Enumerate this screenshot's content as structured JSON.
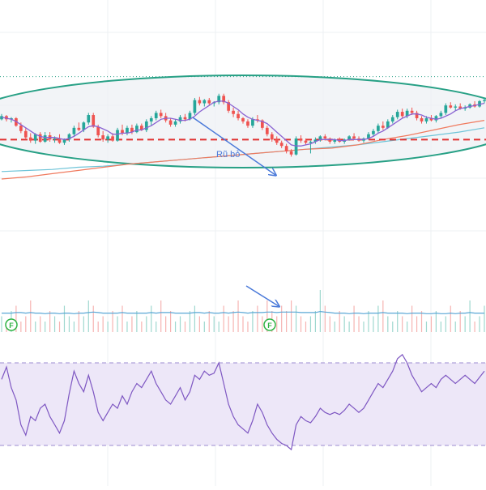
{
  "chart_data": {
    "type": "candlestick",
    "price_panel": {
      "candles": [
        [
          12.8,
          13.3,
          12.7,
          13.1
        ],
        [
          13.1,
          13.2,
          12.6,
          12.8
        ],
        [
          12.8,
          13.0,
          12.5,
          12.9
        ],
        [
          12.9,
          13.0,
          12.1,
          12.2
        ],
        [
          12.2,
          12.5,
          11.5,
          11.7
        ],
        [
          11.7,
          12.0,
          10.9,
          11.1
        ],
        [
          11.1,
          11.5,
          10.6,
          10.8
        ],
        [
          10.8,
          11.5,
          10.5,
          11.4
        ],
        [
          11.4,
          11.6,
          10.6,
          10.7
        ],
        [
          10.7,
          11.6,
          10.6,
          11.3
        ],
        [
          11.3,
          11.6,
          10.7,
          10.9
        ],
        [
          10.9,
          11.2,
          10.6,
          11.0
        ],
        [
          11.0,
          11.4,
          10.5,
          10.6
        ],
        [
          10.6,
          11.0,
          10.4,
          10.9
        ],
        [
          10.9,
          11.5,
          10.7,
          11.4
        ],
        [
          11.4,
          12.2,
          11.2,
          12.0
        ],
        [
          12.0,
          12.5,
          11.7,
          11.8
        ],
        [
          11.8,
          12.6,
          11.6,
          12.5
        ],
        [
          12.5,
          13.4,
          12.3,
          13.2
        ],
        [
          13.2,
          13.4,
          12.0,
          12.1
        ],
        [
          12.1,
          12.3,
          11.1,
          11.3
        ],
        [
          11.3,
          11.7,
          10.7,
          10.9
        ],
        [
          10.9,
          11.4,
          10.6,
          11.2
        ],
        [
          11.2,
          11.5,
          10.7,
          10.8
        ],
        [
          10.8,
          12.0,
          10.7,
          11.8
        ],
        [
          11.8,
          12.3,
          11.3,
          11.5
        ],
        [
          11.5,
          12.2,
          11.3,
          12.0
        ],
        [
          12.0,
          12.3,
          11.4,
          11.6
        ],
        [
          11.6,
          12.4,
          11.5,
          12.2
        ],
        [
          12.2,
          12.4,
          11.7,
          11.8
        ],
        [
          11.8,
          12.8,
          11.6,
          12.6
        ],
        [
          12.6,
          13.1,
          12.2,
          12.9
        ],
        [
          12.9,
          13.6,
          12.7,
          13.4
        ],
        [
          13.4,
          13.7,
          12.9,
          13.1
        ],
        [
          13.1,
          13.4,
          12.5,
          12.7
        ],
        [
          12.7,
          12.9,
          12.1,
          12.3
        ],
        [
          12.3,
          12.8,
          12.1,
          12.6
        ],
        [
          12.6,
          13.2,
          12.4,
          13.0
        ],
        [
          13.0,
          13.3,
          12.6,
          12.8
        ],
        [
          12.8,
          13.6,
          12.7,
          13.4
        ],
        [
          13.4,
          14.8,
          13.2,
          14.6
        ],
        [
          14.6,
          14.9,
          14.1,
          14.3
        ],
        [
          14.3,
          14.7,
          14.0,
          14.6
        ],
        [
          14.6,
          14.8,
          14.1,
          14.3
        ],
        [
          14.3,
          14.5,
          14.0,
          14.4
        ],
        [
          14.4,
          15.2,
          14.2,
          15.0
        ],
        [
          15.0,
          15.2,
          14.2,
          14.4
        ],
        [
          14.4,
          14.6,
          13.4,
          13.6
        ],
        [
          13.6,
          13.9,
          13.0,
          13.3
        ],
        [
          13.3,
          13.6,
          12.7,
          12.9
        ],
        [
          12.9,
          13.0,
          12.4,
          12.6
        ],
        [
          12.6,
          12.8,
          12.0,
          12.2
        ],
        [
          12.2,
          13.0,
          12.0,
          12.8
        ],
        [
          12.8,
          13.2,
          12.5,
          12.7
        ],
        [
          12.7,
          12.8,
          11.8,
          12.0
        ],
        [
          12.0,
          12.2,
          11.2,
          11.4
        ],
        [
          11.4,
          11.6,
          10.7,
          10.9
        ],
        [
          10.9,
          11.2,
          10.4,
          10.6
        ],
        [
          10.6,
          10.8,
          10.1,
          10.3
        ],
        [
          10.3,
          10.5,
          9.6,
          9.8
        ],
        [
          9.8,
          10.0,
          9.3,
          9.5
        ],
        [
          9.5,
          11.2,
          9.4,
          11.0
        ],
        [
          11.0,
          11.3,
          10.6,
          10.8
        ],
        [
          10.8,
          11.0,
          10.4,
          10.6
        ],
        [
          10.6,
          10.8,
          9.6,
          10.7
        ],
        [
          10.7,
          11.1,
          10.5,
          10.9
        ],
        [
          10.9,
          11.3,
          10.7,
          11.2
        ],
        [
          11.2,
          11.4,
          10.8,
          11.0
        ],
        [
          11.0,
          11.1,
          10.5,
          10.7
        ],
        [
          10.7,
          11.0,
          10.5,
          10.9
        ],
        [
          10.9,
          11.1,
          10.6,
          10.7
        ],
        [
          10.7,
          11.0,
          10.5,
          10.9
        ],
        [
          10.9,
          11.3,
          10.8,
          11.2
        ],
        [
          11.2,
          11.5,
          10.9,
          11.0
        ],
        [
          11.0,
          11.2,
          10.7,
          10.8
        ],
        [
          10.8,
          11.1,
          10.6,
          11.0
        ],
        [
          11.0,
          11.6,
          10.9,
          11.4
        ],
        [
          11.4,
          11.9,
          11.2,
          11.7
        ],
        [
          11.7,
          12.4,
          11.5,
          12.2
        ],
        [
          12.2,
          12.6,
          11.8,
          12.0
        ],
        [
          12.0,
          12.8,
          11.9,
          12.6
        ],
        [
          12.6,
          13.2,
          12.4,
          13.0
        ],
        [
          13.0,
          13.7,
          12.8,
          13.5
        ],
        [
          13.5,
          13.8,
          12.9,
          13.1
        ],
        [
          13.1,
          13.8,
          12.9,
          13.6
        ],
        [
          13.6,
          13.9,
          13.2,
          13.4
        ],
        [
          13.4,
          13.6,
          12.7,
          12.9
        ],
        [
          12.9,
          13.1,
          12.4,
          12.6
        ],
        [
          12.6,
          13.1,
          12.4,
          12.9
        ],
        [
          12.9,
          13.2,
          12.6,
          12.7
        ],
        [
          12.7,
          13.2,
          12.5,
          13.1
        ],
        [
          13.1,
          13.6,
          12.9,
          13.4
        ],
        [
          13.4,
          14.3,
          13.2,
          14.1
        ],
        [
          14.1,
          14.4,
          13.8,
          13.9
        ],
        [
          13.9,
          14.2,
          13.6,
          14.0
        ],
        [
          14.0,
          14.3,
          13.7,
          13.8
        ],
        [
          13.8,
          14.1,
          13.6,
          13.9
        ],
        [
          13.9,
          14.3,
          13.8,
          14.2
        ],
        [
          14.2,
          14.5,
          13.9,
          14.0
        ],
        [
          14.0,
          14.6,
          13.9,
          14.5
        ],
        [
          14.5,
          14.8,
          14.3,
          14.6
        ]
      ],
      "support_level": 10.9,
      "top_reference_level": 16.8,
      "ma_short": [
        13.0,
        12.9,
        12.8,
        12.6,
        12.3,
        12.0,
        11.7,
        11.4,
        11.2,
        11.1,
        11.1,
        11.1,
        11.0,
        10.9,
        11.0,
        11.2,
        11.5,
        11.8,
        12.1,
        12.2,
        12.1,
        11.9,
        11.7,
        11.4,
        11.4,
        11.5,
        11.5,
        11.6,
        11.8,
        11.8,
        12.0,
        12.2,
        12.5,
        12.8,
        12.9,
        12.9,
        12.8,
        12.7,
        12.7,
        12.8,
        13.1,
        13.5,
        13.8,
        14.1,
        14.4,
        14.5,
        14.5,
        14.3,
        14.0,
        13.7,
        13.3,
        13.0,
        12.8,
        12.7,
        12.6,
        12.4,
        12.0,
        11.6,
        11.2,
        10.8,
        10.4,
        10.3,
        10.3,
        10.4,
        10.5,
        10.7,
        10.9,
        10.9,
        10.9,
        10.9,
        10.8,
        10.8,
        10.9,
        10.9,
        10.9,
        10.9,
        11.0,
        11.2,
        11.5,
        11.7,
        12.0,
        12.3,
        12.6,
        12.9,
        13.1,
        13.3,
        13.3,
        13.2,
        13.0,
        12.9,
        12.8,
        12.9,
        13.1,
        13.3,
        13.6,
        13.8,
        13.9,
        14.0,
        14.1,
        14.2,
        14.3
      ],
      "ma_long_200": [
        7.2,
        7.4,
        7.7,
        8.0,
        8.3,
        8.6,
        8.8,
        9.0,
        9.2,
        9.4,
        9.6,
        9.8,
        10.0,
        10.1,
        10.4,
        10.9,
        11.3,
        11.8,
        12.3,
        12.7
      ],
      "ma_long_50": [
        7.9,
        8.0,
        8.1,
        8.3,
        8.4,
        8.6,
        8.8,
        9.0,
        9.2,
        9.4,
        9.6,
        9.8,
        10.0,
        10.2,
        10.4,
        10.7,
        11.0,
        11.3,
        11.6,
        12.0
      ],
      "annotation": "Rũ bỏ"
    },
    "volume_panel": {
      "values": [
        3,
        2,
        4,
        5,
        2,
        3,
        6,
        2,
        3,
        2,
        4,
        3,
        2,
        5,
        3,
        2,
        4,
        3,
        6,
        5,
        2,
        3,
        2,
        4,
        3,
        5,
        2,
        3,
        4,
        2,
        3,
        5,
        2,
        6,
        3,
        4,
        2,
        3,
        2,
        4,
        5,
        3,
        2,
        4,
        3,
        2,
        5,
        3,
        4,
        6,
        3,
        2,
        4,
        5,
        3,
        6,
        4,
        3,
        5,
        4,
        6,
        5,
        3,
        2,
        3,
        4,
        8,
        5,
        3,
        2,
        4,
        3,
        2,
        5,
        3,
        2,
        4,
        3,
        5,
        6,
        3,
        2,
        4,
        3,
        2,
        5,
        3,
        4,
        2,
        3,
        4,
        2,
        3,
        5,
        2,
        4,
        3,
        6,
        2,
        3,
        5
      ],
      "average": [
        3.6,
        3.6,
        3.6,
        3.7,
        3.7,
        3.6,
        3.7,
        3.6,
        3.6,
        3.5,
        3.6,
        3.6,
        3.5,
        3.6,
        3.6,
        3.5,
        3.6,
        3.6,
        3.7,
        3.8,
        3.7,
        3.6,
        3.6,
        3.6,
        3.6,
        3.7,
        3.6,
        3.6,
        3.6,
        3.6,
        3.6,
        3.7,
        3.6,
        3.7,
        3.7,
        3.7,
        3.6,
        3.6,
        3.6,
        3.6,
        3.7,
        3.7,
        3.6,
        3.7,
        3.6,
        3.6,
        3.7,
        3.6,
        3.7,
        3.8,
        3.7,
        3.6,
        3.7,
        3.7,
        3.7,
        3.8,
        3.8,
        3.7,
        3.8,
        3.8,
        3.8,
        3.8,
        3.7,
        3.7,
        3.7,
        3.7,
        3.9,
        3.8,
        3.7,
        3.6,
        3.6,
        3.6,
        3.5,
        3.6,
        3.6,
        3.5,
        3.6,
        3.6,
        3.6,
        3.7,
        3.6,
        3.6,
        3.6,
        3.6,
        3.5,
        3.6,
        3.6,
        3.6,
        3.5,
        3.5,
        3.6,
        3.5,
        3.5,
        3.6,
        3.5,
        3.6,
        3.6,
        3.7,
        3.6,
        3.6,
        3.6
      ],
      "markers": [
        "F",
        "F"
      ]
    },
    "rsi_panel": {
      "upper_band": 70,
      "lower_band": 30,
      "values": [
        62,
        68,
        58,
        52,
        40,
        35,
        44,
        42,
        48,
        50,
        44,
        40,
        36,
        42,
        55,
        66,
        60,
        56,
        64,
        56,
        46,
        42,
        46,
        50,
        48,
        54,
        50,
        56,
        60,
        58,
        62,
        66,
        60,
        56,
        52,
        50,
        54,
        58,
        52,
        56,
        64,
        62,
        66,
        64,
        65,
        70,
        60,
        50,
        44,
        40,
        38,
        36,
        42,
        50,
        46,
        40,
        36,
        33,
        31,
        30,
        28,
        40,
        44,
        42,
        41,
        44,
        48,
        46,
        45,
        46,
        45,
        47,
        50,
        48,
        46,
        48,
        52,
        56,
        60,
        58,
        62,
        66,
        72,
        74,
        70,
        64,
        60,
        56,
        58,
        60,
        58,
        62,
        64,
        62,
        60,
        62,
        64,
        62,
        60,
        63,
        66
      ]
    },
    "grid": true
  }
}
